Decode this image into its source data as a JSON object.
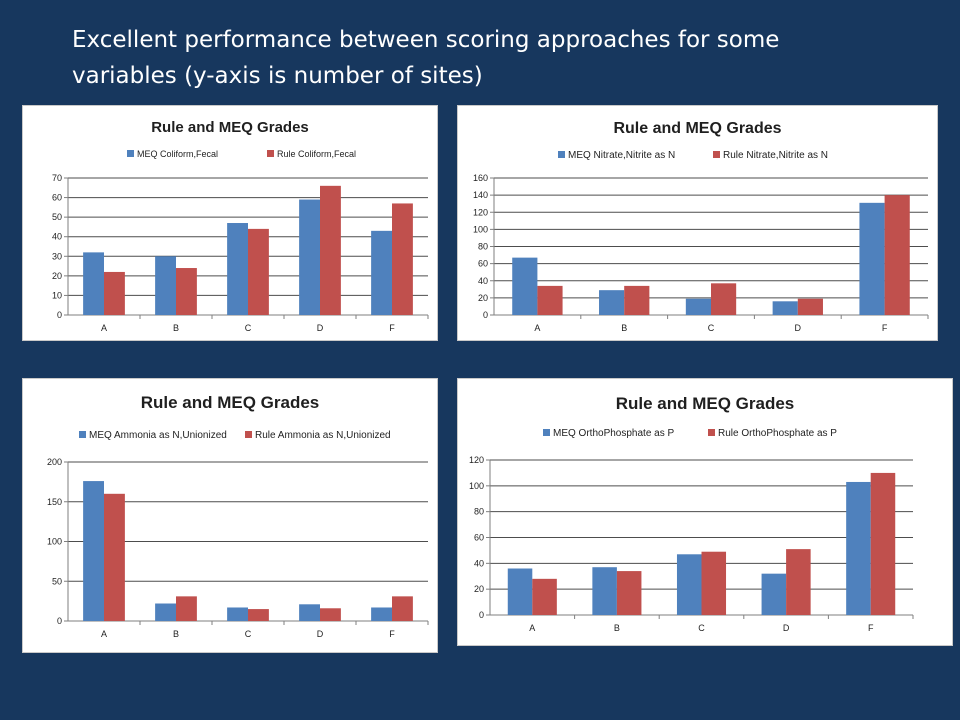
{
  "slide": {
    "title_line1": "Excellent performance between scoring approaches for some",
    "title_line2": "variables (y-axis is number of sites)"
  },
  "colors": {
    "series1": "#4f81bd",
    "series2": "#c0504d",
    "background": "#17375e"
  },
  "chart_data": [
    {
      "type": "bar",
      "title": "Rule and MEQ Grades",
      "categories": [
        "A",
        "B",
        "C",
        "D",
        "F"
      ],
      "series": [
        {
          "name": "MEQ Coliform,Fecal",
          "values": [
            32,
            30,
            47,
            59,
            43
          ]
        },
        {
          "name": "Rule Coliform,Fecal",
          "values": [
            22,
            24,
            44,
            66,
            57
          ]
        }
      ],
      "ylim": [
        0,
        70
      ],
      "ystep": 10,
      "grid": true,
      "legend": "top"
    },
    {
      "type": "bar",
      "title": "Rule and MEQ Grades",
      "categories": [
        "A",
        "B",
        "C",
        "D",
        "F"
      ],
      "series": [
        {
          "name": "MEQ Nitrate,Nitrite  as N",
          "values": [
            67,
            29,
            19,
            16,
            131
          ]
        },
        {
          "name": "Rule Nitrate,Nitrite  as N",
          "values": [
            34,
            34,
            37,
            19,
            140
          ]
        }
      ],
      "ylim": [
        0,
        160
      ],
      "ystep": 20,
      "grid": true,
      "legend": "top"
    },
    {
      "type": "bar",
      "title": "Rule and MEQ Grades",
      "categories": [
        "A",
        "B",
        "C",
        "D",
        "F"
      ],
      "series": [
        {
          "name": "MEQ Ammonia as N,Unionized",
          "values": [
            176,
            22,
            17,
            21,
            17
          ]
        },
        {
          "name": "Rule Ammonia as N,Unionized",
          "values": [
            160,
            31,
            15,
            16,
            31
          ]
        }
      ],
      "ylim": [
        0,
        200
      ],
      "ystep": 50,
      "grid": true,
      "legend": "top"
    },
    {
      "type": "bar",
      "title": "Rule and MEQ Grades",
      "categories": [
        "A",
        "B",
        "C",
        "D",
        "F"
      ],
      "series": [
        {
          "name": "MEQ OrthoPhosphate as P",
          "values": [
            36,
            37,
            47,
            32,
            103
          ]
        },
        {
          "name": "Rule OrthoPhosphate as P",
          "values": [
            28,
            34,
            49,
            51,
            110
          ]
        }
      ],
      "ylim": [
        0,
        120
      ],
      "ystep": 20,
      "grid": true,
      "legend": "top"
    }
  ]
}
